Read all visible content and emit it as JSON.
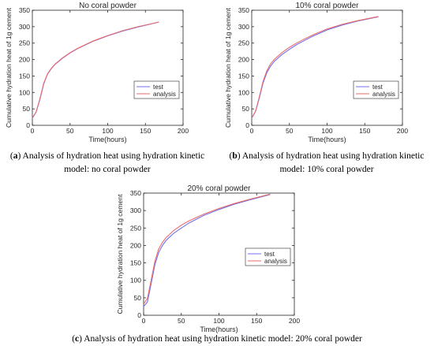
{
  "chart_data": [
    {
      "type": "line",
      "title": "No coral powder",
      "xlabel": "Time(hours)",
      "ylabel": "Cumulative hydration heat of 1g cement",
      "xlim": [
        0,
        200
      ],
      "ylim": [
        0,
        350
      ],
      "xticks": [
        0,
        50,
        100,
        150,
        200
      ],
      "yticks": [
        0,
        50,
        100,
        150,
        200,
        250,
        300,
        350
      ],
      "legend_position": "lower-right",
      "series": [
        {
          "name": "test",
          "color": "#7070ee",
          "x": [
            0,
            5,
            10,
            15,
            20,
            25,
            30,
            40,
            50,
            60,
            80,
            100,
            120,
            140,
            168
          ],
          "y": [
            22,
            40,
            78,
            125,
            155,
            172,
            185,
            204,
            220,
            233,
            255,
            272,
            287,
            299,
            314
          ]
        },
        {
          "name": "analysis",
          "color": "#e96b6b",
          "x": [
            0,
            5,
            10,
            15,
            20,
            25,
            30,
            40,
            50,
            60,
            80,
            100,
            120,
            140,
            168
          ],
          "y": [
            22,
            41,
            80,
            127,
            156,
            173,
            186,
            205,
            221,
            234,
            256,
            273,
            288,
            300,
            314
          ]
        }
      ]
    },
    {
      "type": "line",
      "title": "10% coral powder",
      "xlabel": "Time(hours)",
      "ylabel": "Cumulative hydration heat of 1g cement",
      "xlim": [
        0,
        200
      ],
      "ylim": [
        0,
        350
      ],
      "xticks": [
        0,
        50,
        100,
        150,
        200
      ],
      "yticks": [
        0,
        50,
        100,
        150,
        200,
        250,
        300,
        350
      ],
      "legend_position": "lower-right",
      "series": [
        {
          "name": "test",
          "color": "#7070ee",
          "x": [
            0,
            5,
            10,
            15,
            20,
            25,
            30,
            40,
            50,
            60,
            80,
            100,
            120,
            140,
            168
          ],
          "y": [
            22,
            42,
            82,
            128,
            160,
            180,
            195,
            215,
            231,
            246,
            270,
            290,
            305,
            317,
            330
          ]
        },
        {
          "name": "analysis",
          "color": "#e96b6b",
          "x": [
            0,
            5,
            10,
            15,
            20,
            25,
            30,
            40,
            50,
            60,
            80,
            100,
            120,
            140,
            168
          ],
          "y": [
            22,
            43,
            85,
            133,
            166,
            187,
            201,
            221,
            237,
            251,
            274,
            293,
            307,
            318,
            331
          ]
        }
      ]
    },
    {
      "type": "line",
      "title": "20% coral powder",
      "xlabel": "Time(hours)",
      "ylabel": "Cumulative hydration heat of 1g cement",
      "xlim": [
        0,
        200
      ],
      "ylim": [
        0,
        350
      ],
      "xticks": [
        0,
        50,
        100,
        150,
        200
      ],
      "yticks": [
        0,
        50,
        100,
        150,
        200,
        250,
        300,
        350
      ],
      "legend_position": "lower-right",
      "series": [
        {
          "name": "test",
          "color": "#7070ee",
          "x": [
            0,
            5,
            10,
            15,
            20,
            25,
            30,
            40,
            50,
            60,
            80,
            100,
            120,
            140,
            168
          ],
          "y": [
            25,
            38,
            90,
            145,
            180,
            200,
            215,
            235,
            250,
            264,
            286,
            303,
            318,
            330,
            346
          ]
        },
        {
          "name": "analysis",
          "color": "#e96b6b",
          "x": [
            0,
            5,
            10,
            15,
            20,
            25,
            30,
            40,
            50,
            60,
            80,
            100,
            120,
            140,
            168
          ],
          "y": [
            32,
            48,
            100,
            155,
            190,
            209,
            223,
            243,
            258,
            270,
            290,
            306,
            320,
            332,
            347
          ]
        }
      ]
    }
  ],
  "captions": [
    {
      "letter": "a",
      "text": " Analysis of hydration heat using hydration kinetic model: no coral powder"
    },
    {
      "letter": "b",
      "text": " Analysis of hydration heat using hydration kinetic model: 10% coral powder"
    },
    {
      "letter": "c",
      "text": " Analysis of hydration heat using hydration kinetic model: 20% coral powder"
    }
  ]
}
